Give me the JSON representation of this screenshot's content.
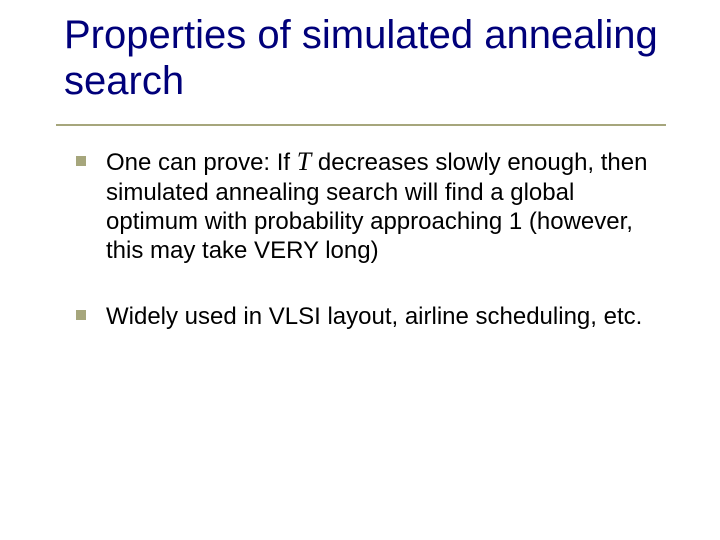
{
  "slide": {
    "title": "Properties of simulated annealing search",
    "title_color": "#00007a",
    "title_fontsize": 40,
    "rule_color": "#a6a67c",
    "background": "#ffffff",
    "bullets": [
      {
        "prefix": "One can prove: If ",
        "var": "T",
        "suffix": " decreases slowly enough, then simulated annealing search will find a global optimum with probability approaching 1 (however, this may take VERY long)"
      },
      {
        "prefix": "Widely used in VLSI layout, airline scheduling, etc.",
        "var": "",
        "suffix": ""
      }
    ],
    "bullet_color": "#a6a67c",
    "body_fontsize": 24,
    "body_color": "#000000"
  }
}
